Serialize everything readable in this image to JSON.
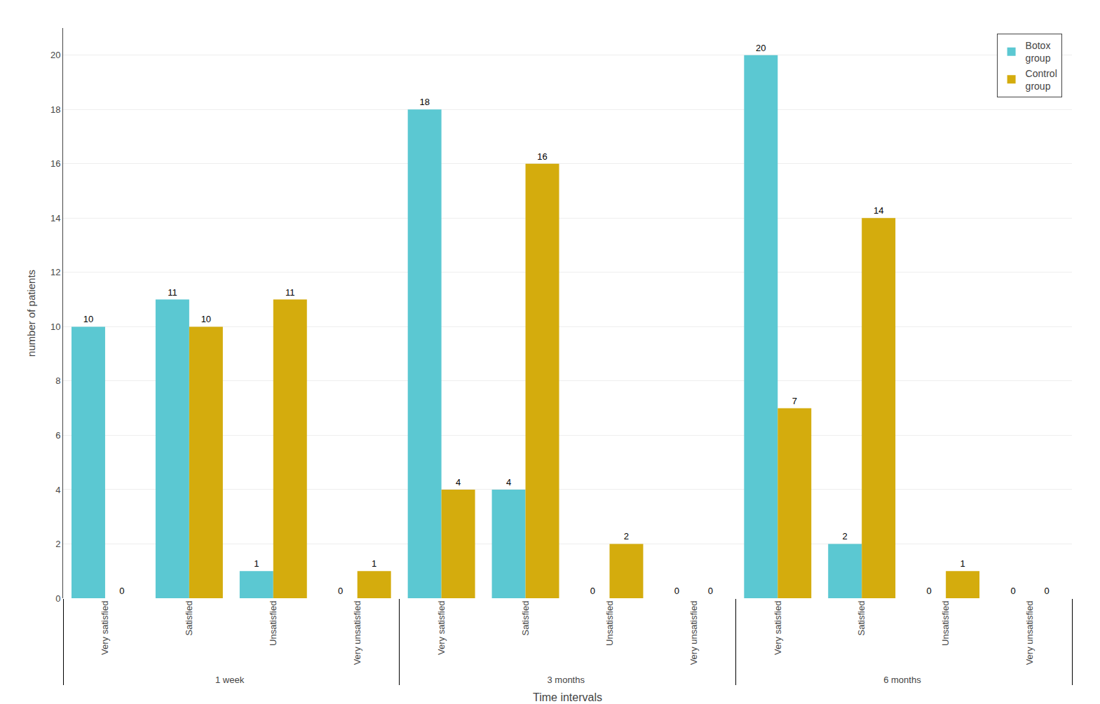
{
  "chart_data": {
    "type": "bar",
    "xlabel": "Time intervals",
    "ylabel": "number of patients",
    "groups": [
      "1 week",
      "3 months",
      "6 months"
    ],
    "categories": [
      "Very satisfied",
      "Satisfied",
      "Unsatisfied",
      "Very unsatisfied"
    ],
    "series": [
      {
        "name": "Botox\ngroup",
        "color": "#5BC8D2",
        "values": [
          [
            10,
            11,
            1,
            0
          ],
          [
            18,
            4,
            0,
            0
          ],
          [
            20,
            2,
            0,
            0
          ]
        ]
      },
      {
        "name": "Control\ngroup",
        "color": "#D4AC0D",
        "values": [
          [
            0,
            10,
            11,
            1
          ],
          [
            4,
            16,
            2,
            0
          ],
          [
            7,
            14,
            1,
            0
          ]
        ]
      }
    ],
    "ylim": [
      0,
      21
    ],
    "yticks": [
      0,
      2,
      4,
      6,
      8,
      10,
      12,
      14,
      16,
      18,
      20
    ],
    "grid": true,
    "legend": "upper right",
    "data_labels": true
  }
}
